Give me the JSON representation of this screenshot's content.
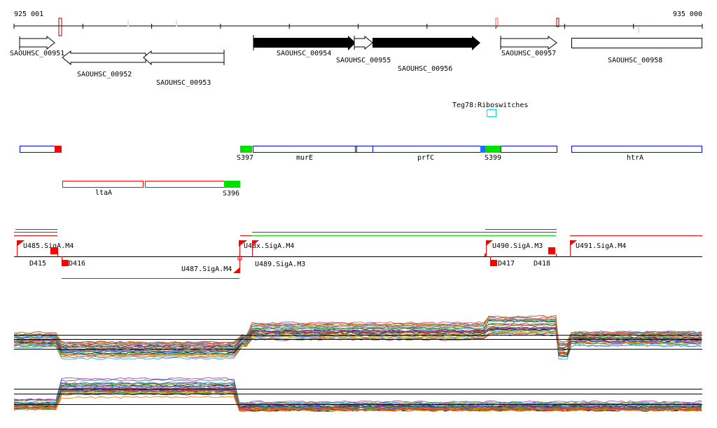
{
  "ruler": {
    "start_label": "925 001",
    "end_label": "935 000"
  },
  "genes": [
    {
      "id": "SAOUHSC_00951",
      "strand": "+",
      "style": "open"
    },
    {
      "id": "SAOUHSC_00952",
      "strand": "-",
      "style": "open"
    },
    {
      "id": "SAOUHSC_00953",
      "strand": "-",
      "style": "open"
    },
    {
      "id": "SAOUHSC_00954",
      "strand": "+",
      "style": "filled"
    },
    {
      "id": "SAOUHSC_00955",
      "strand": "+",
      "style": "open"
    },
    {
      "id": "SAOUHSC_00956",
      "strand": "+",
      "style": "filled"
    },
    {
      "id": "SAOUHSC_00957",
      "strand": "+",
      "style": "open"
    },
    {
      "id": "SAOUHSC_00958",
      "strand": "none",
      "style": "open"
    }
  ],
  "riboswitch": {
    "label": "Teg78:Riboswitches"
  },
  "features_upper": [
    "S397",
    "murE",
    "prfC",
    "S399",
    "htrA"
  ],
  "features_lower": [
    "ltaA",
    "S396"
  ],
  "promoters": [
    "U485.SigA.M4",
    "U487.SigA.M4",
    "U490.SigA.M3",
    "U491.SigA.M4",
    "U48x.SigA.M4",
    "U489.SigA.M3"
  ],
  "terminators": [
    "D415",
    "D416",
    "D417",
    "D418"
  ],
  "colors": {
    "red": "#ff0000",
    "green": "#00e000",
    "blue": "#0000ff",
    "darkred": "#a00000",
    "cyan": "#00e0e0"
  }
}
